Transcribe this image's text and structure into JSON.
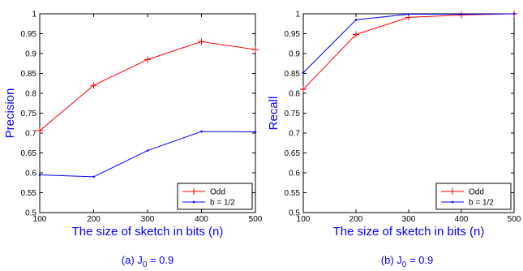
{
  "chart_data": [
    {
      "type": "line",
      "x": [
        100,
        200,
        300,
        400,
        500
      ],
      "xlim": [
        100,
        500
      ],
      "ylim": [
        0.5,
        1
      ],
      "xticks": [
        "100",
        "200",
        "300",
        "400",
        "500"
      ],
      "yticks": [
        "0.5",
        "0.55",
        "0.6",
        "0.65",
        "0.7",
        "0.75",
        "0.8",
        "0.85",
        "0.9",
        "0.95",
        "1"
      ],
      "xlabel": "The size of sketch in bits (n)",
      "ylabel": "Precision",
      "caption_main": "(a) J",
      "caption_sub": "0",
      "caption_rest": " = 0.9",
      "grid": false,
      "legend_position": "bottom-right",
      "series": [
        {
          "name": "Odd",
          "color": "#ff0000",
          "marker": "plus",
          "values": [
            0.706,
            0.82,
            0.885,
            0.93,
            0.91
          ]
        },
        {
          "name": "b = 1/2",
          "color": "#0000ff",
          "marker": "dot",
          "values": [
            0.595,
            0.59,
            0.656,
            0.704,
            0.703
          ]
        }
      ]
    },
    {
      "type": "line",
      "x": [
        100,
        200,
        300,
        400,
        500
      ],
      "xlim": [
        100,
        500
      ],
      "ylim": [
        0.5,
        1
      ],
      "xticks": [
        "100",
        "200",
        "300",
        "400",
        "500"
      ],
      "yticks": [
        "0.5",
        "0.55",
        "0.6",
        "0.65",
        "0.7",
        "0.75",
        "0.8",
        "0.85",
        "0.9",
        "0.95",
        "1"
      ],
      "xlabel": "The size of sketch in bits (n)",
      "ylabel": "Recall",
      "caption_main": "(b) J",
      "caption_sub": "0",
      "caption_rest": " = 0.9",
      "grid": false,
      "legend_position": "bottom-right",
      "series": [
        {
          "name": "Odd",
          "color": "#ff0000",
          "marker": "plus",
          "values": [
            0.81,
            0.948,
            0.991,
            0.997,
            1.0
          ]
        },
        {
          "name": "b = 1/2",
          "color": "#0000ff",
          "marker": "dot",
          "values": [
            0.852,
            0.985,
            0.999,
            0.999,
            1.0
          ]
        }
      ]
    }
  ]
}
